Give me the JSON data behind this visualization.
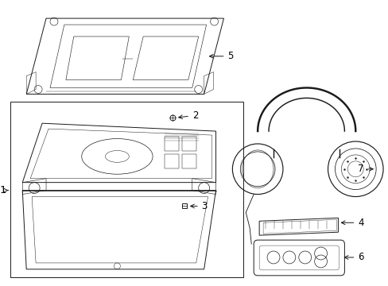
{
  "background_color": "#ffffff",
  "line_color": "#1a1a1a",
  "text_color": "#000000",
  "font_size": 8.5,
  "lw": 0.7
}
